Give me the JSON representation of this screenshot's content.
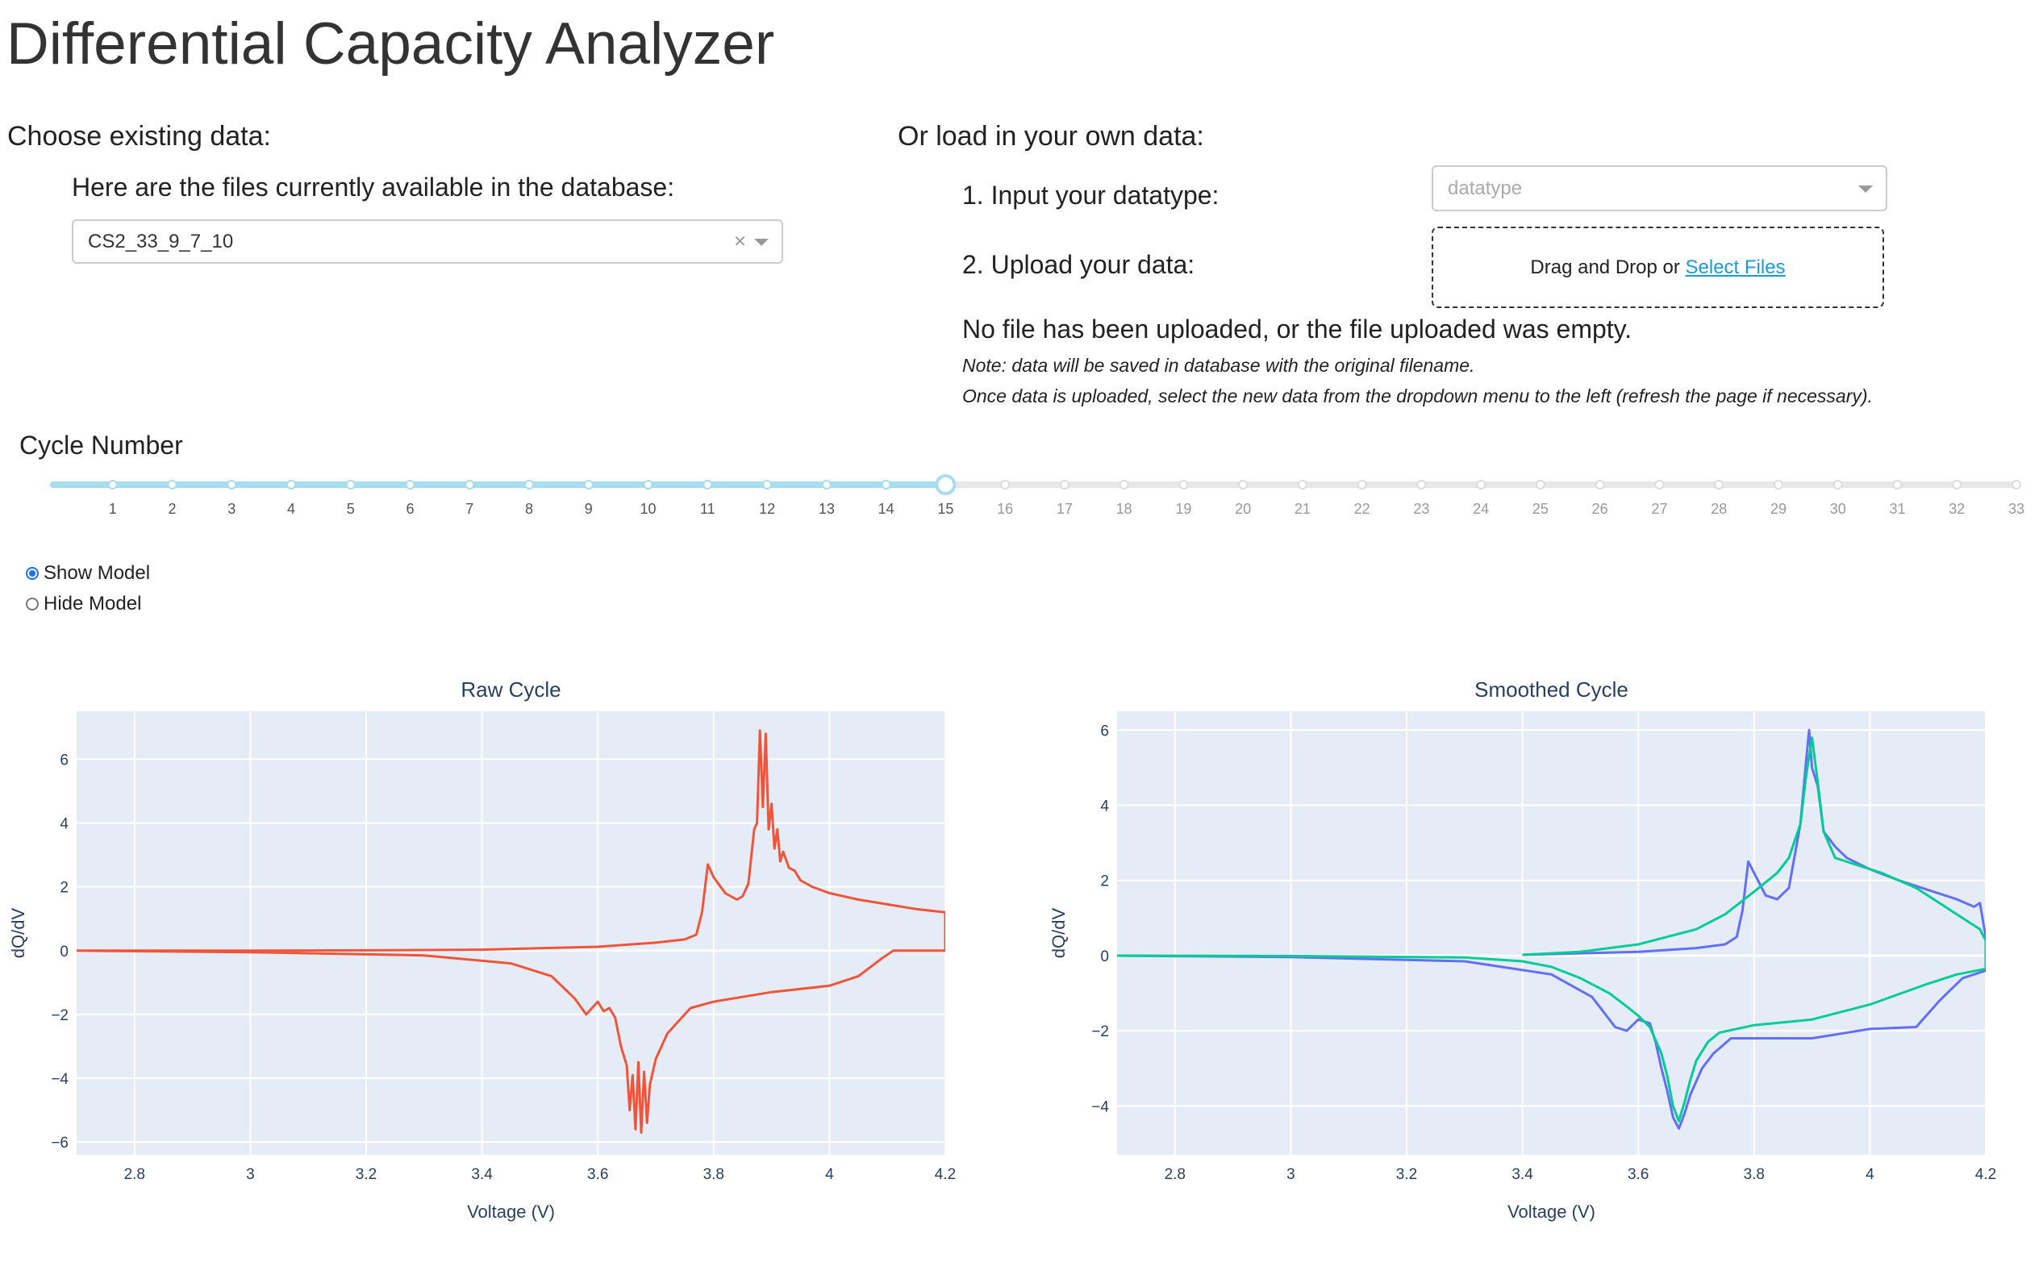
{
  "header": {
    "title": "Differential Capacity Analyzer"
  },
  "existing": {
    "heading": "Choose existing data:",
    "files_label": "Here are the files currently available in the database:",
    "selected_file": "CS2_33_9_7_10",
    "clear_glyph": "×"
  },
  "upload": {
    "heading": "Or load in your own data:",
    "datatype_label": "1. Input your datatype:",
    "datatype_placeholder": "datatype",
    "upload_label": "2. Upload your data:",
    "drop_text": "Drag and Drop or ",
    "select_files": "Select Files",
    "status": "No file has been uploaded, or the file uploaded was empty.",
    "note1": "Note: data will be saved in database with the original filename.",
    "note2": "Once data is uploaded, select the new data from the dropdown menu to the left (refresh the page if necessary)."
  },
  "slider": {
    "label": "Cycle Number",
    "min": 1,
    "max": 33,
    "value": 15,
    "active_color": "#a8dcef",
    "inactive_color": "#e8e8e8",
    "marks": [
      "1",
      "2",
      "3",
      "4",
      "5",
      "6",
      "7",
      "8",
      "9",
      "10",
      "11",
      "12",
      "13",
      "14",
      "15",
      "16",
      "17",
      "18",
      "19",
      "20",
      "21",
      "22",
      "23",
      "24",
      "25",
      "26",
      "27",
      "28",
      "29",
      "30",
      "31",
      "32",
      "33"
    ]
  },
  "model_toggle": {
    "options": [
      "Show Model",
      "Hide Model"
    ],
    "selected": "Show Model"
  },
  "colors": {
    "raw": "#ef553b",
    "smooth": "#636efa",
    "model": "#00cc96",
    "plot_bg": "#e5ecf6"
  },
  "chart_data": [
    {
      "type": "line",
      "title": "Raw Cycle",
      "xlabel": "Voltage (V)",
      "ylabel": "dQ/dV",
      "xlim": [
        2.7,
        4.2
      ],
      "ylim": [
        -6.4,
        7.5
      ],
      "xticks": [
        2.8,
        3,
        3.2,
        3.4,
        3.6,
        3.8,
        4,
        4.2
      ],
      "xtick_labels": [
        "2.8",
        "3",
        "3.2",
        "3.4",
        "3.6",
        "3.8",
        "4",
        "4.2"
      ],
      "yticks": [
        -6,
        -4,
        -2,
        0,
        2,
        4,
        6
      ],
      "ytick_labels": [
        "−6",
        "−4",
        "−2",
        "0",
        "2",
        "4",
        "6"
      ],
      "grid": true,
      "series": [
        {
          "color": "#ef553b",
          "x": [
            2.7,
            3.0,
            3.2,
            3.4,
            3.6,
            3.7,
            3.75,
            3.77,
            3.78,
            3.79,
            3.8,
            3.82,
            3.84,
            3.85,
            3.86,
            3.87,
            3.875,
            3.88,
            3.885,
            3.89,
            3.895,
            3.9,
            3.905,
            3.91,
            3.915,
            3.92,
            3.93,
            3.94,
            3.95,
            3.97,
            4.0,
            4.05,
            4.1,
            4.15,
            4.2,
            4.2,
            4.15,
            4.11,
            4.09,
            4.05,
            4.0,
            3.9,
            3.8,
            3.76,
            3.73,
            3.72,
            3.71,
            3.7,
            3.69,
            3.685,
            3.68,
            3.675,
            3.67,
            3.665,
            3.66,
            3.655,
            3.65,
            3.64,
            3.63,
            3.62,
            3.61,
            3.6,
            3.59,
            3.58,
            3.56,
            3.52,
            3.45,
            3.3,
            3.0,
            2.7
          ],
          "y": [
            0,
            0,
            0.01,
            0.03,
            0.12,
            0.25,
            0.35,
            0.5,
            1.2,
            2.7,
            2.3,
            1.8,
            1.6,
            1.7,
            2.1,
            3.8,
            4.0,
            6.9,
            4.5,
            6.8,
            3.8,
            4.6,
            3.2,
            3.8,
            2.8,
            3.1,
            2.6,
            2.5,
            2.2,
            2.0,
            1.8,
            1.6,
            1.45,
            1.3,
            1.2,
            0,
            0,
            0,
            -0.25,
            -0.8,
            -1.1,
            -1.3,
            -1.6,
            -1.8,
            -2.4,
            -2.6,
            -3.0,
            -3.4,
            -4.2,
            -5.4,
            -3.8,
            -5.7,
            -3.5,
            -5.6,
            -3.9,
            -5.0,
            -3.6,
            -3.0,
            -2.1,
            -1.8,
            -1.9,
            -1.6,
            -1.8,
            -2.0,
            -1.5,
            -0.8,
            -0.4,
            -0.15,
            -0.05,
            0
          ]
        }
      ]
    },
    {
      "type": "line",
      "title": "Smoothed Cycle",
      "xlabel": "Voltage (V)",
      "ylabel": "dQ/dV",
      "xlim": [
        2.7,
        4.2
      ],
      "ylim": [
        -5.3,
        6.5
      ],
      "xticks": [
        2.8,
        3,
        3.2,
        3.4,
        3.6,
        3.8,
        4,
        4.2
      ],
      "xtick_labels": [
        "2.8",
        "3",
        "3.2",
        "3.4",
        "3.6",
        "3.8",
        "4",
        "4.2"
      ],
      "yticks": [
        -4,
        -2,
        0,
        2,
        4,
        6
      ],
      "ytick_labels": [
        "−4",
        "−2",
        "0",
        "2",
        "4",
        "6"
      ],
      "grid": true,
      "series": [
        {
          "color": "#636efa",
          "x": [
            3.4,
            3.6,
            3.7,
            3.75,
            3.77,
            3.78,
            3.79,
            3.8,
            3.82,
            3.84,
            3.86,
            3.88,
            3.89,
            3.895,
            3.9,
            3.91,
            3.92,
            3.94,
            3.96,
            4.0,
            4.05,
            4.1,
            4.15,
            4.18,
            4.19,
            4.2,
            4.2,
            4.16,
            4.12,
            4.08,
            4.0,
            3.9,
            3.8,
            3.76,
            3.73,
            3.71,
            3.69,
            3.68,
            3.67,
            3.66,
            3.65,
            3.64,
            3.63,
            3.62,
            3.6,
            3.58,
            3.56,
            3.52,
            3.45,
            3.3,
            3.0,
            2.7
          ],
          "y": [
            0.02,
            0.1,
            0.2,
            0.3,
            0.5,
            1.2,
            2.5,
            2.2,
            1.6,
            1.5,
            1.8,
            3.5,
            5.2,
            6.0,
            5.0,
            4.5,
            3.3,
            2.9,
            2.6,
            2.3,
            2.0,
            1.75,
            1.5,
            1.3,
            1.4,
            0.5,
            -0.4,
            -0.6,
            -1.2,
            -1.9,
            -1.95,
            -2.2,
            -2.2,
            -2.2,
            -2.6,
            -3.0,
            -3.7,
            -4.2,
            -4.6,
            -4.3,
            -3.6,
            -3.0,
            -2.3,
            -1.8,
            -1.7,
            -2.0,
            -1.9,
            -1.1,
            -0.5,
            -0.15,
            -0.04,
            0
          ]
        },
        {
          "color": "#00cc96",
          "x": [
            3.4,
            3.5,
            3.6,
            3.7,
            3.75,
            3.8,
            3.84,
            3.86,
            3.88,
            3.89,
            3.9,
            3.91,
            3.92,
            3.94,
            3.98,
            4.02,
            4.08,
            4.12,
            4.16,
            4.19,
            4.2,
            4.2,
            4.15,
            4.1,
            4.0,
            3.9,
            3.8,
            3.74,
            3.72,
            3.7,
            3.69,
            3.68,
            3.67,
            3.66,
            3.65,
            3.64,
            3.62,
            3.6,
            3.58,
            3.55,
            3.5,
            3.45,
            3.4,
            3.3,
            3.0,
            2.7
          ],
          "y": [
            0.02,
            0.1,
            0.3,
            0.7,
            1.1,
            1.7,
            2.2,
            2.6,
            3.5,
            4.8,
            5.8,
            4.6,
            3.3,
            2.6,
            2.4,
            2.2,
            1.8,
            1.4,
            1.0,
            0.7,
            0.4,
            -0.35,
            -0.5,
            -0.75,
            -1.3,
            -1.7,
            -1.85,
            -2.05,
            -2.3,
            -2.8,
            -3.3,
            -3.9,
            -4.4,
            -4.0,
            -3.2,
            -2.6,
            -1.9,
            -1.6,
            -1.35,
            -1.0,
            -0.6,
            -0.3,
            -0.15,
            -0.05,
            -0.01,
            0
          ]
        }
      ]
    }
  ]
}
